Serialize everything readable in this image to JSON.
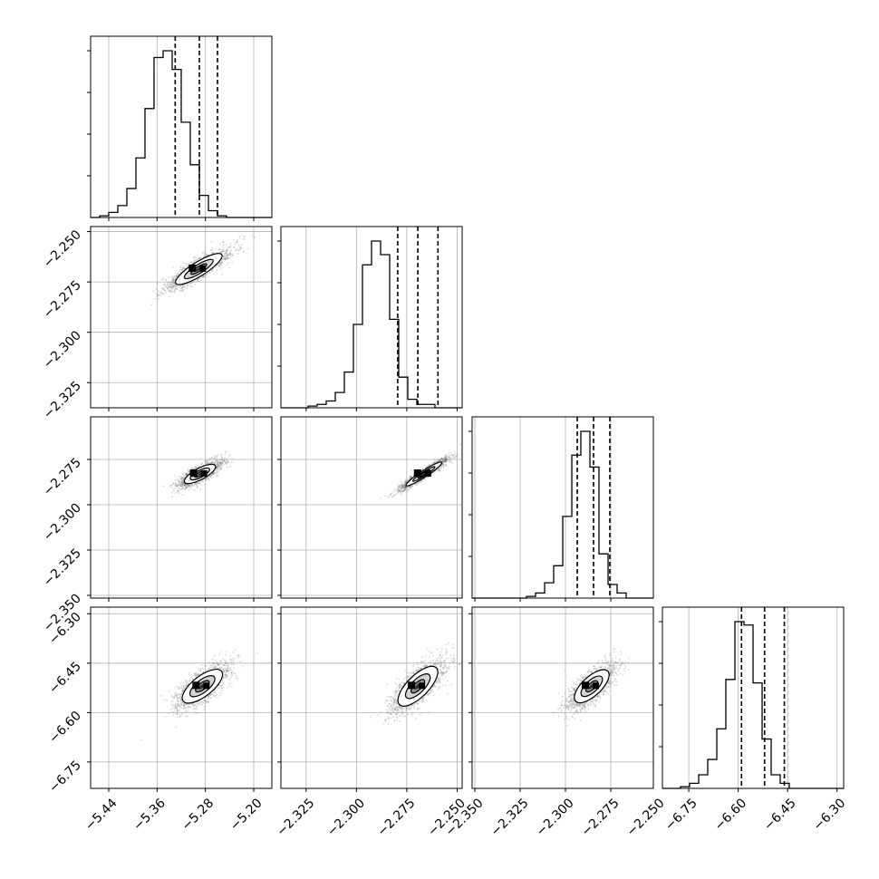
{
  "chart_data": {
    "type": "corner",
    "title": "",
    "variables": [
      {
        "xlim": [
          -5.47,
          -5.17
        ],
        "ticks": [
          -5.44,
          -5.36,
          -5.28,
          -5.2
        ],
        "tick_labels": [
          "−5.44",
          "−5.36",
          "−5.28",
          "−5.20"
        ]
      },
      {
        "xlim": [
          -2.3375,
          -2.2475
        ],
        "ticks": [
          -2.325,
          -2.3,
          -2.275,
          -2.25
        ],
        "tick_labels": [
          "−2.325",
          "−2.300",
          "−2.275",
          "−2.250"
        ]
      },
      {
        "xlim": [
          -2.3515,
          -2.2515
        ],
        "ticks": [
          -2.35,
          -2.325,
          -2.3,
          -2.275,
          -2.25
        ],
        "tick_labels": [
          "−2.350",
          "−2.325",
          "−2.300",
          "−2.275",
          "−2.250"
        ]
      },
      {
        "xlim": [
          -6.83,
          -6.28
        ],
        "ticks": [
          -6.75,
          -6.6,
          -6.45,
          -6.3
        ],
        "tick_labels": [
          "−6.75",
          "−6.60",
          "−6.45",
          "−6.30"
        ]
      }
    ],
    "histograms": [
      {
        "lo": -5.47,
        "hi": -5.17,
        "counts": [
          0,
          1,
          3,
          7,
          17,
          35,
          64,
          94,
          98,
          87,
          56,
          31,
          13,
          4,
          1,
          0,
          0,
          0,
          0,
          0
        ],
        "quantiles": [
          -5.33,
          -5.29,
          -5.26
        ]
      },
      {
        "lo": -2.3375,
        "hi": -2.2475,
        "counts": [
          0,
          0,
          0,
          1,
          2,
          4,
          9,
          21,
          49,
          84,
          98,
          90,
          52,
          18,
          5,
          2,
          2,
          0,
          0,
          0
        ],
        "quantiles": [
          -2.2795,
          -2.2695,
          -2.2595
        ]
      },
      {
        "lo": -2.3515,
        "hi": -2.2515,
        "counts": [
          0,
          0,
          0,
          0,
          0,
          0,
          1,
          3,
          9,
          19,
          48,
          84,
          98,
          77,
          26,
          8,
          3,
          0,
          0,
          0
        ],
        "quantiles": [
          -2.2935,
          -2.2845,
          -2.2755
        ]
      },
      {
        "lo": -6.83,
        "hi": -6.28,
        "counts": [
          0,
          0,
          1,
          3,
          8,
          17,
          35,
          64,
          98,
          96,
          62,
          29,
          8,
          3,
          0,
          0,
          0,
          0,
          0,
          0
        ],
        "quantiles": [
          -6.59,
          -6.52,
          -6.46
        ]
      }
    ],
    "joint_distributions": [
      {
        "x_var": 0,
        "y_var": 1,
        "center": [
          -5.291,
          -2.2686
        ],
        "extent": [
          0.055,
          0.0335
        ],
        "angle_deg": -32,
        "width_fraction": 0.24
      },
      {
        "x_var": 0,
        "y_var": 2,
        "center": [
          -5.289,
          -2.283
        ],
        "extent": [
          0.055,
          0.0195
        ],
        "angle_deg": -28,
        "width_fraction": 0.3
      },
      {
        "x_var": 1,
        "y_var": 2,
        "center": [
          -2.2665,
          -2.283
        ],
        "extent": [
          0.0215,
          0.022
        ],
        "angle_deg": -33,
        "width_fraction": 0.14
      },
      {
        "x_var": 0,
        "y_var": 3,
        "center": [
          -5.285,
          -6.52
        ],
        "extent": [
          0.07,
          0.16
        ],
        "angle_deg": -38,
        "width_fraction": 0.38
      },
      {
        "x_var": 1,
        "y_var": 3,
        "center": [
          -2.2695,
          -6.52
        ],
        "extent": [
          0.0245,
          0.16
        ],
        "angle_deg": -45,
        "width_fraction": 0.38
      },
      {
        "x_var": 2,
        "y_var": 3,
        "center": [
          -2.2855,
          -6.52
        ],
        "extent": [
          0.017,
          0.16
        ],
        "angle_deg": -43,
        "width_fraction": 0.4
      }
    ],
    "grid": true,
    "contour_levels": 3
  }
}
